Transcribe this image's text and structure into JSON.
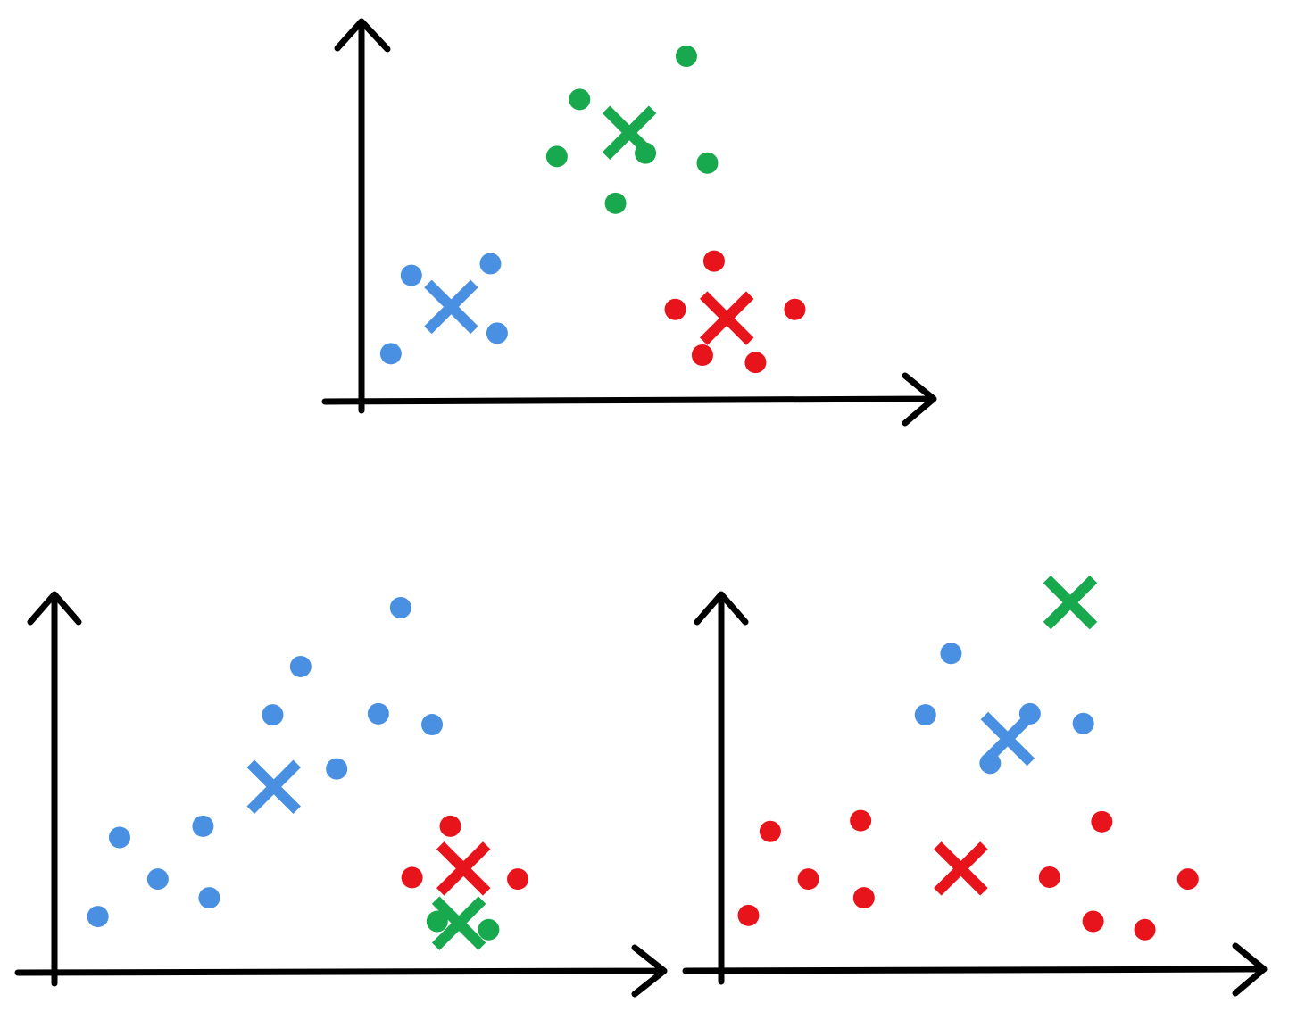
{
  "colors": {
    "axis": "#000000",
    "blue": "#4a90e2",
    "green": "#18a84e",
    "red": "#e8141c"
  },
  "chart_data": [
    {
      "type": "scatter",
      "panel": "top",
      "title": "",
      "xlabel": "",
      "ylabel": "",
      "xlim": [
        0,
        100
      ],
      "ylim": [
        0,
        100
      ],
      "grid": false,
      "series": [
        {
          "color": "blue",
          "marker": "dot",
          "points": [
            [
              5.3,
              12.6
            ],
            [
              9.0,
              34.0
            ],
            [
              23.3,
              37.2
            ],
            [
              24.5,
              18.2
            ]
          ]
        },
        {
          "color": "blue",
          "marker": "cross",
          "points": [
            [
              16.2,
              25.4
            ]
          ]
        },
        {
          "color": "green",
          "marker": "dot",
          "points": [
            [
              35.3,
              66.5
            ],
            [
              39.4,
              82.1
            ],
            [
              45.9,
              53.7
            ],
            [
              51.3,
              67.4
            ],
            [
              58.7,
              93.9
            ],
            [
              62.5,
              64.7
            ]
          ]
        },
        {
          "color": "green",
          "marker": "cross",
          "points": [
            [
              48.4,
              73.0
            ]
          ]
        },
        {
          "color": "red",
          "marker": "dot",
          "points": [
            [
              56.7,
              24.7
            ],
            [
              63.7,
              37.9
            ],
            [
              61.6,
              12.2
            ],
            [
              71.2,
              10.2
            ],
            [
              78.3,
              24.7
            ]
          ]
        },
        {
          "color": "red",
          "marker": "cross",
          "points": [
            [
              66.0,
              22.3
            ]
          ]
        }
      ]
    },
    {
      "type": "scatter",
      "panel": "bottom-left",
      "title": "",
      "xlabel": "",
      "ylabel": "",
      "xlim": [
        0,
        100
      ],
      "ylim": [
        0,
        100
      ],
      "grid": false,
      "series": [
        {
          "color": "blue",
          "marker": "dot",
          "points": [
            [
              7.6,
              14.5
            ],
            [
              11.4,
              35.6
            ],
            [
              18.1,
              24.5
            ],
            [
              26.0,
              38.6
            ],
            [
              27.1,
              19.5
            ],
            [
              38.2,
              68.3
            ],
            [
              43.1,
              81.2
            ],
            [
              49.4,
              53.9
            ],
            [
              56.7,
              68.6
            ],
            [
              60.6,
              96.9
            ],
            [
              66.1,
              65.7
            ]
          ]
        },
        {
          "color": "blue",
          "marker": "cross",
          "points": [
            [
              38.4,
              49.1
            ]
          ]
        },
        {
          "color": "red",
          "marker": "dot",
          "points": [
            [
              62.6,
              24.9
            ],
            [
              69.3,
              38.6
            ],
            [
              81.1,
              24.5
            ]
          ]
        },
        {
          "color": "red",
          "marker": "cross",
          "points": [
            [
              71.6,
              27.3
            ]
          ]
        },
        {
          "color": "green",
          "marker": "dot",
          "points": [
            [
              67.0,
              13.2
            ],
            [
              76.0,
              11.0
            ]
          ]
        },
        {
          "color": "green",
          "marker": "cross",
          "points": [
            [
              70.8,
              12.7
            ]
          ]
        }
      ]
    },
    {
      "type": "scatter",
      "panel": "bottom-right",
      "title": "",
      "xlabel": "",
      "ylabel": "",
      "xlim": [
        0,
        100
      ],
      "ylim": [
        0,
        100
      ],
      "grid": false,
      "series": [
        {
          "color": "red",
          "marker": "dot",
          "points": [
            [
              5.0,
              14.8
            ],
            [
              9.0,
              37.2
            ],
            [
              16.0,
              24.5
            ],
            [
              25.6,
              40.1
            ],
            [
              26.2,
              19.5
            ],
            [
              60.3,
              25.0
            ],
            [
              68.3,
              13.2
            ],
            [
              69.9,
              39.8
            ],
            [
              77.8,
              11.0
            ],
            [
              85.7,
              24.5
            ]
          ]
        },
        {
          "color": "red",
          "marker": "cross",
          "points": [
            [
              44.0,
              27.3
            ]
          ]
        },
        {
          "color": "blue",
          "marker": "dot",
          "points": [
            [
              37.5,
              68.3
            ],
            [
              42.2,
              84.7
            ],
            [
              49.4,
              55.4
            ],
            [
              56.7,
              68.6
            ],
            [
              66.5,
              66.0
            ]
          ]
        },
        {
          "color": "blue",
          "marker": "cross",
          "points": [
            [
              52.6,
              61.9
            ]
          ]
        },
        {
          "color": "green",
          "marker": "cross",
          "points": [
            [
              64.1,
              98.3
            ]
          ]
        }
      ]
    }
  ]
}
